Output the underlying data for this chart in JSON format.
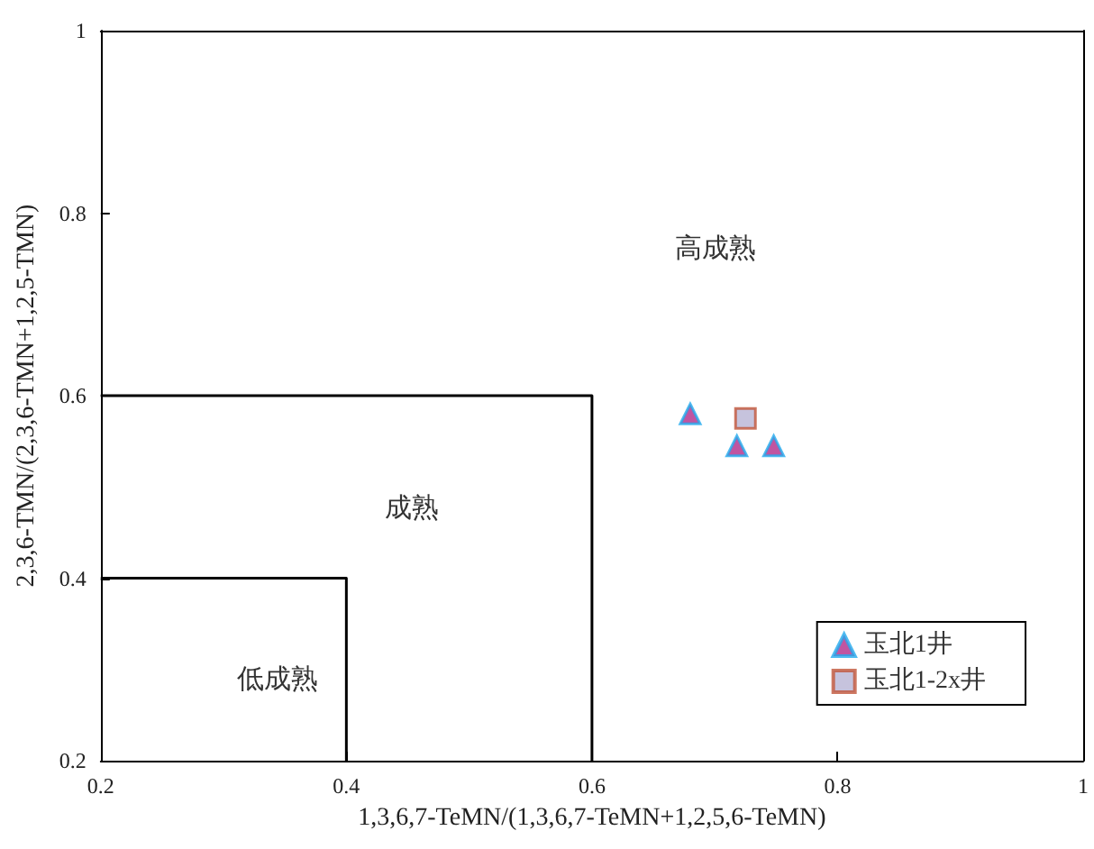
{
  "chart_data": {
    "type": "scatter",
    "xlabel": "1,3,6,7-TeMN/(1,3,6,7-TeMN+1,2,5,6-TeMN)",
    "ylabel": "2,3,6-TMN/(2,3,6-TMN+1,2,5-TMN)",
    "xlim": [
      0.2,
      1
    ],
    "xticks": [
      0.2,
      0.4,
      0.6,
      0.8,
      1
    ],
    "ylim": [
      0.2,
      1
    ],
    "yticks": [
      0.2,
      0.4,
      0.6,
      0.8,
      1
    ],
    "grid": false,
    "legend": "bottom right",
    "annotations": [
      "高成熟",
      "成熟",
      "低成熟"
    ],
    "series": [
      {
        "name": "玉北1井",
        "color": "#b02a8a",
        "marker": "triangle",
        "x": [
          0.68,
          0.718,
          0.748
        ],
        "values": [
          0.58,
          0.545,
          0.545
        ]
      },
      {
        "name": "玉北1-2x井",
        "color": "#b8b4d4",
        "marker": "square",
        "x": [
          0.725
        ],
        "values": [
          0.575
        ]
      },
      {
        "type": "line",
        "color": "#000000",
        "marker": "none",
        "x": [
          0.4,
          0.4,
          0.2
        ],
        "values": [
          0.2,
          0.4,
          0.4
        ]
      },
      {
        "type": "line",
        "color": "#000000",
        "marker": "none",
        "x": [
          0.6,
          0.6,
          0.2
        ],
        "values": [
          0.2,
          0.6,
          0.6
        ]
      }
    ]
  }
}
